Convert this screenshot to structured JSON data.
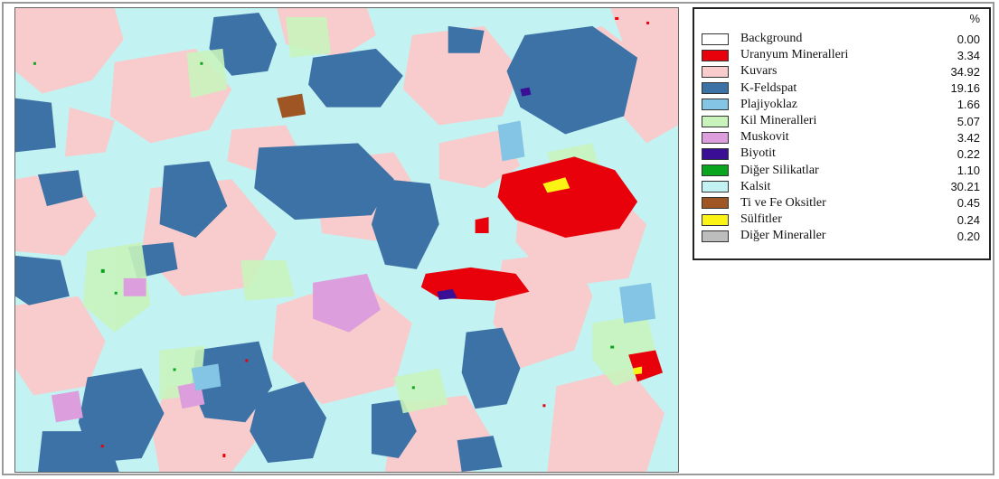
{
  "legend": {
    "percent_header": "%",
    "items": [
      {
        "label": "Background",
        "value": "0.00",
        "color": "#ffffff"
      },
      {
        "label": "Uranyum Mineralleri",
        "value": "3.34",
        "color": "#e8000b"
      },
      {
        "label": "Kuvars",
        "value": "34.92",
        "color": "#f8cccc"
      },
      {
        "label": "K-Feldspat",
        "value": "19.16",
        "color": "#3d72a6"
      },
      {
        "label": "Plajiyoklaz",
        "value": "1.66",
        "color": "#84c4e4"
      },
      {
        "label": "Kil Mineralleri",
        "value": "5.07",
        "color": "#c8f4bc"
      },
      {
        "label": "Muskovit",
        "value": "3.42",
        "color": "#dc9edc"
      },
      {
        "label": "Biyotit",
        "value": "0.22",
        "color": "#3a0f95"
      },
      {
        "label": "Diğer Silikatlar",
        "value": "1.10",
        "color": "#0aa51e"
      },
      {
        "label": "Kalsit",
        "value": "30.21",
        "color": "#c2f2f2"
      },
      {
        "label": "Ti ve Fe Oksitler",
        "value": "0.45",
        "color": "#a05524"
      },
      {
        "label": "Sülfitler",
        "value": "0.24",
        "color": "#fbf313"
      },
      {
        "label": "Diğer Mineraller",
        "value": "0.20",
        "color": "#bdbdbd"
      }
    ]
  }
}
